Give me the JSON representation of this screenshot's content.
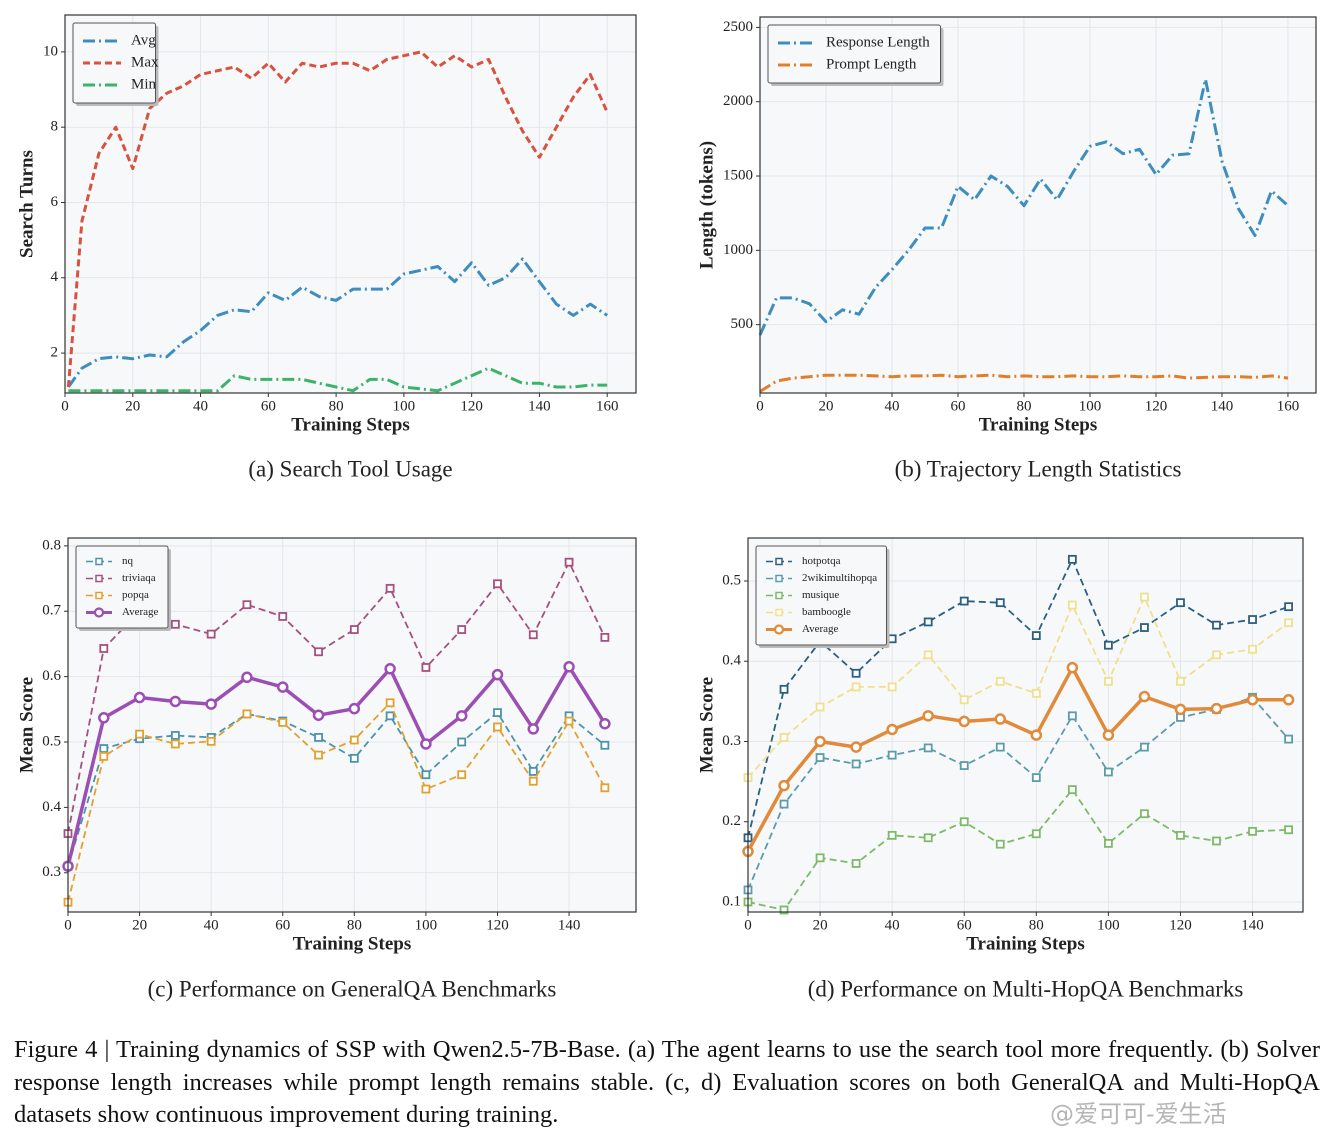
{
  "chart_data": [
    {
      "type": "line",
      "caption": "(a) Search Tool Usage",
      "x_label": "Training Steps",
      "y_label": "Search Turns",
      "x": [
        1,
        5,
        10,
        15,
        20,
        25,
        30,
        35,
        40,
        45,
        50,
        55,
        60,
        65,
        70,
        75,
        80,
        85,
        90,
        95,
        100,
        105,
        110,
        115,
        120,
        125,
        130,
        135,
        140,
        145,
        150,
        155,
        160
      ],
      "xlim": [
        0,
        168.5
      ],
      "xticks": [
        0,
        20,
        40,
        60,
        80,
        100,
        120,
        140,
        160
      ],
      "ylim": [
        0.94,
        10.98
      ],
      "yticks": [
        2,
        4,
        6,
        8,
        10
      ],
      "grid": true,
      "legend": "upper-left",
      "series": [
        {
          "name": "Avg",
          "color": "#3d8ebf",
          "dash": "dashdot",
          "values": [
            1.1,
            1.6,
            1.85,
            1.9,
            1.85,
            1.95,
            1.9,
            2.3,
            2.6,
            3.0,
            3.15,
            3.1,
            3.6,
            3.4,
            3.75,
            3.5,
            3.4,
            3.7,
            3.7,
            3.7,
            4.1,
            4.2,
            4.3,
            3.9,
            4.4,
            3.8,
            4.0,
            4.5,
            3.9,
            3.3,
            3.0,
            3.3,
            3.0
          ]
        },
        {
          "name": "Max",
          "color": "#d9513f",
          "dash": "dashed",
          "values": [
            1.1,
            5.5,
            7.3,
            8.0,
            6.9,
            8.5,
            8.9,
            9.1,
            9.4,
            9.5,
            9.6,
            9.3,
            9.7,
            9.2,
            9.7,
            9.6,
            9.7,
            9.7,
            9.5,
            9.8,
            9.9,
            10.0,
            9.6,
            9.9,
            9.6,
            9.8,
            8.8,
            7.9,
            7.2,
            8.0,
            8.8,
            9.4,
            8.4
          ]
        },
        {
          "name": "Min",
          "color": "#3cb36b",
          "dash": "dashdot",
          "values": [
            1,
            1,
            1,
            1,
            1,
            1,
            1,
            1,
            1,
            1,
            1.4,
            1.3,
            1.3,
            1.3,
            1.3,
            1.2,
            1.1,
            1.0,
            1.3,
            1.3,
            1.1,
            1.05,
            1.0,
            1.2,
            1.4,
            1.6,
            1.4,
            1.2,
            1.2,
            1.1,
            1.1,
            1.15,
            1.15
          ]
        }
      ]
    },
    {
      "type": "line",
      "caption": "(b) Trajectory Length Statistics",
      "x_label": "Training Steps",
      "y_label": "Length (tokens)",
      "x": [
        0,
        5,
        10,
        15,
        20,
        25,
        30,
        35,
        40,
        45,
        50,
        55,
        60,
        65,
        70,
        75,
        80,
        85,
        90,
        95,
        100,
        105,
        110,
        115,
        120,
        125,
        130,
        135,
        140,
        145,
        150,
        155,
        160
      ],
      "xlim": [
        0,
        168.5
      ],
      "xticks": [
        0,
        20,
        40,
        60,
        80,
        100,
        120,
        140,
        160
      ],
      "ylim": [
        40,
        2570
      ],
      "yticks": [
        500,
        1000,
        1500,
        2000,
        2500
      ],
      "grid": true,
      "legend": "upper-left",
      "series": [
        {
          "name": "Response Length",
          "color": "#3d8ebf",
          "dash": "dashdot",
          "values": [
            430,
            680,
            680,
            640,
            520,
            600,
            570,
            750,
            870,
            1000,
            1150,
            1150,
            1430,
            1340,
            1500,
            1430,
            1300,
            1480,
            1340,
            1530,
            1700,
            1730,
            1650,
            1680,
            1510,
            1640,
            1650,
            2150,
            1600,
            1280,
            1100,
            1400,
            1300
          ]
        },
        {
          "name": "Prompt Length",
          "color": "#e07f2a",
          "dash": "dashdot",
          "values": [
            50,
            120,
            140,
            150,
            160,
            160,
            160,
            155,
            150,
            155,
            155,
            160,
            150,
            155,
            160,
            150,
            155,
            150,
            150,
            155,
            150,
            150,
            155,
            150,
            150,
            155,
            140,
            145,
            150,
            150,
            145,
            155,
            140
          ]
        }
      ]
    },
    {
      "type": "line",
      "caption": "(c) Performance on GeneralQA Benchmarks",
      "x_label": "Training Steps",
      "y_label": "Mean Score",
      "x": [
        0,
        10,
        20,
        30,
        40,
        50,
        60,
        70,
        80,
        90,
        100,
        110,
        120,
        130,
        140,
        150
      ],
      "xlim": [
        0,
        158.7
      ],
      "xticks": [
        0,
        20,
        40,
        60,
        80,
        100,
        120,
        140
      ],
      "ylim": [
        0.24,
        0.812
      ],
      "yticks": [
        0.3,
        0.4,
        0.5,
        0.6,
        0.7,
        0.8
      ],
      "grid": true,
      "legend": "upper-left",
      "series": [
        {
          "name": "nq",
          "color": "#4a93ad",
          "dash": "dashed",
          "marker": "square",
          "values": [
            0.31,
            0.49,
            0.505,
            0.51,
            0.507,
            0.543,
            0.532,
            0.507,
            0.475,
            0.54,
            0.45,
            0.5,
            0.545,
            0.455,
            0.54,
            0.495
          ]
        },
        {
          "name": "triviaqa",
          "color": "#a5507f",
          "dash": "dashed",
          "marker": "square",
          "values": [
            0.36,
            0.643,
            0.7,
            0.68,
            0.665,
            0.71,
            0.692,
            0.638,
            0.672,
            0.735,
            0.614,
            0.672,
            0.742,
            0.664,
            0.775,
            0.66
          ]
        },
        {
          "name": "popqa",
          "color": "#e2a12e",
          "dash": "dashed",
          "marker": "square",
          "values": [
            0.255,
            0.478,
            0.512,
            0.497,
            0.501,
            0.543,
            0.53,
            0.48,
            0.503,
            0.56,
            0.428,
            0.45,
            0.523,
            0.44,
            0.532,
            0.43
          ]
        },
        {
          "name": "Average",
          "color": "#9b4fb5",
          "dash": "solid",
          "marker": "circle",
          "values": [
            0.31,
            0.537,
            0.568,
            0.562,
            0.558,
            0.599,
            0.584,
            0.541,
            0.551,
            0.612,
            0.497,
            0.54,
            0.603,
            0.52,
            0.615,
            0.528
          ]
        }
      ]
    },
    {
      "type": "line",
      "caption": "(d) Performance on Multi-HopQA Benchmarks",
      "x_label": "Training Steps",
      "y_label": "Mean Score",
      "x": [
        0,
        10,
        20,
        30,
        40,
        50,
        60,
        70,
        80,
        90,
        100,
        110,
        120,
        130,
        140,
        150
      ],
      "xlim": [
        0,
        154
      ],
      "xticks": [
        0,
        20,
        40,
        60,
        80,
        100,
        120,
        140
      ],
      "ylim": [
        0.0875,
        0.5536
      ],
      "yticks": [
        0.1,
        0.2,
        0.3,
        0.4,
        0.5
      ],
      "grid": true,
      "legend": "upper-left",
      "series": [
        {
          "name": "hotpotqa",
          "color": "#2b5f80",
          "dash": "dashed",
          "marker": "square",
          "values": [
            0.18,
            0.365,
            0.425,
            0.385,
            0.428,
            0.449,
            0.475,
            0.473,
            0.432,
            0.527,
            0.42,
            0.442,
            0.473,
            0.445,
            0.452,
            0.468
          ]
        },
        {
          "name": "2wikimultihopqa",
          "color": "#5b9bae",
          "dash": "dashed",
          "marker": "square",
          "values": [
            0.115,
            0.222,
            0.28,
            0.272,
            0.283,
            0.292,
            0.27,
            0.293,
            0.255,
            0.332,
            0.262,
            0.293,
            0.33,
            0.34,
            0.355,
            0.303
          ]
        },
        {
          "name": "musique",
          "color": "#7cba6a",
          "dash": "dashed",
          "marker": "square",
          "values": [
            0.1,
            0.09,
            0.155,
            0.148,
            0.183,
            0.18,
            0.2,
            0.172,
            0.185,
            0.24,
            0.173,
            0.21,
            0.183,
            0.176,
            0.188,
            0.19
          ]
        },
        {
          "name": "bamboogle",
          "color": "#f0df8c",
          "dash": "dashed",
          "marker": "square",
          "values": [
            0.255,
            0.305,
            0.343,
            0.368,
            0.368,
            0.408,
            0.352,
            0.375,
            0.36,
            0.47,
            0.375,
            0.48,
            0.375,
            0.408,
            0.415,
            0.448
          ]
        },
        {
          "name": "Average",
          "color": "#e08a3a",
          "dash": "solid",
          "marker": "circle",
          "values": [
            0.163,
            0.245,
            0.3,
            0.293,
            0.315,
            0.332,
            0.325,
            0.328,
            0.308,
            0.392,
            0.308,
            0.356,
            0.34,
            0.341,
            0.352,
            0.352
          ]
        }
      ]
    }
  ],
  "figure_caption": "Figure 4 | Training dynamics of SSP with Qwen2.5-7B-Base. (a) The agent learns to use the search tool more frequently. (b) Solver response length increases while prompt length remains stable. (c, d) Evaluation scores on both GeneralQA and Multi-HopQA datasets show continuous improvement during training.",
  "watermark": "@爱可可-爱生活"
}
